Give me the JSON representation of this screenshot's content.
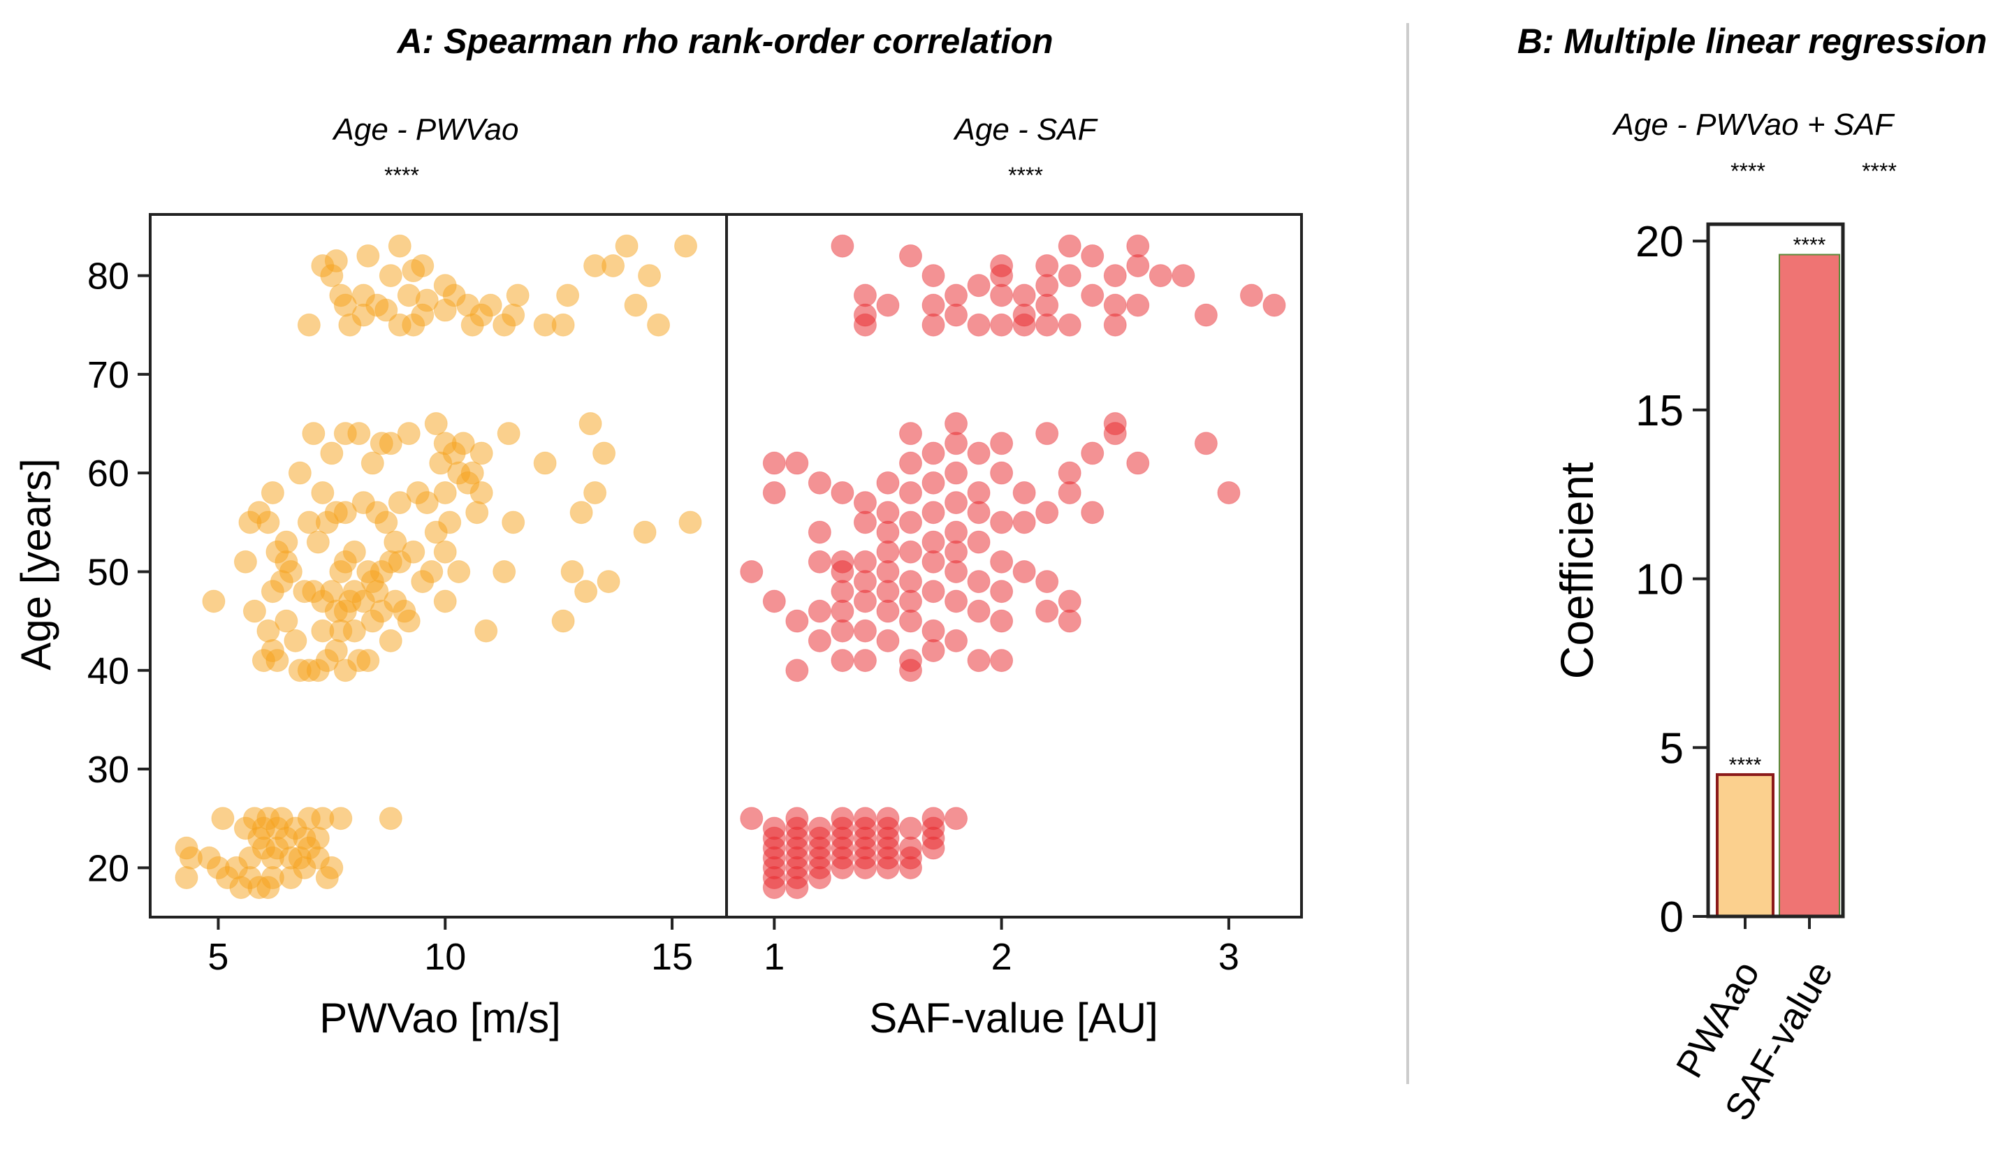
{
  "chart_data": [
    {
      "type": "scatter",
      "panel_title": "A: Spearman rho rank-order correlation",
      "title": "Age - PWVao",
      "significance": "****",
      "xlabel": "PWVao [m/s]",
      "ylabel": "Age [years]",
      "xlim": [
        3.5,
        16.2
      ],
      "ylim": [
        15,
        86.2
      ],
      "xticks": [
        5,
        10,
        15
      ],
      "yticks": [
        20,
        30,
        40,
        50,
        60,
        70,
        80
      ],
      "color": "#f5a21b",
      "points": [
        [
          7.3,
          81
        ],
        [
          7.5,
          80
        ],
        [
          7.6,
          81.5
        ],
        [
          8.3,
          82
        ],
        [
          9,
          83
        ],
        [
          9.5,
          81
        ],
        [
          8.8,
          80
        ],
        [
          9.3,
          80.5
        ],
        [
          7.7,
          78
        ],
        [
          8.2,
          78
        ],
        [
          8.5,
          77
        ],
        [
          9.2,
          78
        ],
        [
          9.5,
          76
        ],
        [
          10,
          79
        ],
        [
          10.2,
          78
        ],
        [
          10.5,
          77
        ],
        [
          10,
          76.5
        ],
        [
          11,
          77
        ],
        [
          11.5,
          76
        ],
        [
          11.6,
          78
        ],
        [
          12.7,
          78
        ],
        [
          13.3,
          81
        ],
        [
          13.7,
          81
        ],
        [
          14,
          83
        ],
        [
          15.3,
          83
        ],
        [
          14.5,
          80
        ],
        [
          14.2,
          77
        ],
        [
          14.7,
          75
        ],
        [
          7,
          75
        ],
        [
          7.9,
          75
        ],
        [
          8.2,
          76
        ],
        [
          9,
          75
        ],
        [
          9.3,
          75
        ],
        [
          10.6,
          75
        ],
        [
          11.3,
          75
        ],
        [
          12.2,
          75
        ],
        [
          12.6,
          75
        ],
        [
          8.7,
          76.5
        ],
        [
          10.8,
          76
        ],
        [
          7.8,
          77
        ],
        [
          9.6,
          77.5
        ],
        [
          4.9,
          47
        ],
        [
          5.6,
          51
        ],
        [
          5.7,
          55
        ],
        [
          5.9,
          56
        ],
        [
          6.1,
          55
        ],
        [
          6.2,
          58
        ],
        [
          6.3,
          52
        ],
        [
          6.5,
          51
        ],
        [
          6.6,
          50
        ],
        [
          6.2,
          48
        ],
        [
          6.4,
          49
        ],
        [
          5.8,
          46
        ],
        [
          6.1,
          44
        ],
        [
          6.2,
          42
        ],
        [
          6.5,
          45
        ],
        [
          6.7,
          43
        ],
        [
          6.0,
          41
        ],
        [
          6.3,
          41
        ],
        [
          6.8,
          40
        ],
        [
          7.0,
          40
        ],
        [
          7.2,
          40
        ],
        [
          7.4,
          41
        ],
        [
          7.6,
          42
        ],
        [
          7.8,
          40
        ],
        [
          8.1,
          41
        ],
        [
          8.3,
          41
        ],
        [
          7.3,
          44
        ],
        [
          7.7,
          44
        ],
        [
          8.0,
          44
        ],
        [
          8.4,
          45
        ],
        [
          8.8,
          43
        ],
        [
          9.1,
          46
        ],
        [
          6.9,
          48
        ],
        [
          7.1,
          48
        ],
        [
          7.3,
          47
        ],
        [
          7.5,
          48
        ],
        [
          7.6,
          46
        ],
        [
          7.8,
          46
        ],
        [
          7.9,
          47
        ],
        [
          8.0,
          48
        ],
        [
          8.2,
          47
        ],
        [
          8.4,
          49
        ],
        [
          7.7,
          50
        ],
        [
          7.8,
          51
        ],
        [
          8.0,
          52
        ],
        [
          8.3,
          50
        ],
        [
          8.6,
          50
        ],
        [
          8.8,
          51
        ],
        [
          9.0,
          51
        ],
        [
          9.3,
          52
        ],
        [
          8.9,
          53
        ],
        [
          7.4,
          55
        ],
        [
          7.6,
          56
        ],
        [
          7.8,
          56
        ],
        [
          8.2,
          57
        ],
        [
          8.5,
          56
        ],
        [
          8.7,
          55
        ],
        [
          9.0,
          57
        ],
        [
          9.4,
          58
        ],
        [
          9.6,
          57
        ],
        [
          9.8,
          54
        ],
        [
          10.1,
          55
        ],
        [
          10.3,
          60
        ],
        [
          10.5,
          59
        ],
        [
          10.0,
          58
        ],
        [
          9.9,
          61
        ],
        [
          10.2,
          62
        ],
        [
          10.6,
          60
        ],
        [
          10.8,
          58
        ],
        [
          10.0,
          63
        ],
        [
          10.4,
          63
        ],
        [
          9.2,
          64
        ],
        [
          9.8,
          65
        ],
        [
          7.8,
          64
        ],
        [
          8.1,
          64
        ],
        [
          8.6,
          63
        ],
        [
          8.8,
          63
        ],
        [
          7.1,
          64
        ],
        [
          7.5,
          62
        ],
        [
          8.4,
          61
        ],
        [
          6.8,
          60
        ],
        [
          7.3,
          58
        ],
        [
          7.0,
          55
        ],
        [
          6.5,
          53
        ],
        [
          7.2,
          53
        ],
        [
          9.7,
          50
        ],
        [
          10.3,
          50
        ],
        [
          10.7,
          56
        ],
        [
          10.8,
          62
        ],
        [
          11.4,
          64
        ],
        [
          12.2,
          61
        ],
        [
          13.2,
          65
        ],
        [
          13.5,
          62
        ],
        [
          13.0,
          56
        ],
        [
          13.3,
          58
        ],
        [
          12.8,
          50
        ],
        [
          13.1,
          48
        ],
        [
          13.6,
          49
        ],
        [
          12.6,
          45
        ],
        [
          14.4,
          54
        ],
        [
          15.4,
          55
        ],
        [
          11.3,
          50
        ],
        [
          11.5,
          55
        ],
        [
          10.9,
          44
        ],
        [
          10.0,
          47
        ],
        [
          10.0,
          52
        ],
        [
          9.5,
          49
        ],
        [
          8.6,
          46
        ],
        [
          8.5,
          48
        ],
        [
          8.9,
          47
        ],
        [
          9.2,
          45
        ],
        [
          4.3,
          22
        ],
        [
          4.4,
          21
        ],
        [
          4.3,
          19
        ],
        [
          4.8,
          21
        ],
        [
          5.0,
          20
        ],
        [
          5.2,
          19
        ],
        [
          5.5,
          18
        ],
        [
          5.1,
          25
        ],
        [
          5.6,
          24
        ],
        [
          5.8,
          25
        ],
        [
          5.9,
          23
        ],
        [
          6.0,
          22
        ],
        [
          6.2,
          21
        ],
        [
          6.3,
          22
        ],
        [
          6.5,
          23
        ],
        [
          6.1,
          25
        ],
        [
          6.4,
          25
        ],
        [
          6.7,
          24
        ],
        [
          6.9,
          23
        ],
        [
          7.2,
          23
        ],
        [
          7.0,
          22
        ],
        [
          7.3,
          25
        ],
        [
          7.7,
          25
        ],
        [
          6.2,
          19
        ],
        [
          6.6,
          19
        ],
        [
          5.9,
          18
        ],
        [
          6.1,
          18
        ],
        [
          7.4,
          19
        ],
        [
          7.5,
          20
        ],
        [
          6.9,
          20
        ],
        [
          5.4,
          20
        ],
        [
          5.7,
          21
        ],
        [
          6.8,
          21
        ],
        [
          7.0,
          25
        ],
        [
          6.0,
          24
        ],
        [
          8.8,
          25
        ],
        [
          7.2,
          21
        ],
        [
          5.7,
          19
        ],
        [
          6.6,
          21
        ],
        [
          6.3,
          24
        ]
      ]
    },
    {
      "type": "scatter",
      "title": "Age - SAF",
      "significance": "****",
      "xlabel": "SAF-value [AU]",
      "ylabel": "Age [years]",
      "xlim": [
        0.79,
        3.32
      ],
      "ylim": [
        15,
        86.2
      ],
      "xticks": [
        1,
        2,
        3
      ],
      "color": "#e8262a",
      "points": [
        [
          1.3,
          83
        ],
        [
          1.4,
          78
        ],
        [
          1.4,
          76
        ],
        [
          1.4,
          75
        ],
        [
          1.5,
          77
        ],
        [
          1.7,
          77
        ],
        [
          1.7,
          75
        ],
        [
          1.8,
          78
        ],
        [
          1.8,
          76
        ],
        [
          1.6,
          82
        ],
        [
          1.7,
          80
        ],
        [
          1.9,
          75
        ],
        [
          1.9,
          79
        ],
        [
          2.0,
          80
        ],
        [
          2.0,
          81
        ],
        [
          2.0,
          78
        ],
        [
          2.0,
          75
        ],
        [
          2.1,
          78
        ],
        [
          2.1,
          76
        ],
        [
          2.1,
          75
        ],
        [
          2.2,
          77
        ],
        [
          2.2,
          75
        ],
        [
          2.2,
          79
        ],
        [
          2.2,
          81
        ],
        [
          2.3,
          83
        ],
        [
          2.3,
          80
        ],
        [
          2.3,
          75
        ],
        [
          2.4,
          78
        ],
        [
          2.5,
          77
        ],
        [
          2.5,
          75
        ],
        [
          2.5,
          80
        ],
        [
          2.6,
          83
        ],
        [
          2.6,
          77
        ],
        [
          2.6,
          81
        ],
        [
          2.7,
          80
        ],
        [
          2.8,
          80
        ],
        [
          2.9,
          76
        ],
        [
          3.1,
          78
        ],
        [
          3.2,
          77
        ],
        [
          2.4,
          82
        ],
        [
          0.9,
          50
        ],
        [
          1.0,
          61
        ],
        [
          1.1,
          61
        ],
        [
          1.0,
          47
        ],
        [
          1.1,
          40
        ],
        [
          1.2,
          59
        ],
        [
          1.2,
          54
        ],
        [
          1.2,
          51
        ],
        [
          1.2,
          46
        ],
        [
          1.2,
          43
        ],
        [
          1.3,
          58
        ],
        [
          1.3,
          51
        ],
        [
          1.3,
          50
        ],
        [
          1.3,
          48
        ],
        [
          1.3,
          46
        ],
        [
          1.3,
          44
        ],
        [
          1.3,
          41
        ],
        [
          1.4,
          57
        ],
        [
          1.4,
          55
        ],
        [
          1.4,
          51
        ],
        [
          1.4,
          49
        ],
        [
          1.4,
          47
        ],
        [
          1.4,
          44
        ],
        [
          1.4,
          41
        ],
        [
          1.5,
          59
        ],
        [
          1.5,
          56
        ],
        [
          1.5,
          54
        ],
        [
          1.5,
          52
        ],
        [
          1.5,
          50
        ],
        [
          1.5,
          48
        ],
        [
          1.5,
          46
        ],
        [
          1.5,
          43
        ],
        [
          1.6,
          64
        ],
        [
          1.6,
          61
        ],
        [
          1.6,
          58
        ],
        [
          1.6,
          55
        ],
        [
          1.6,
          52
        ],
        [
          1.6,
          49
        ],
        [
          1.6,
          47
        ],
        [
          1.6,
          45
        ],
        [
          1.6,
          41
        ],
        [
          1.6,
          40
        ],
        [
          1.7,
          62
        ],
        [
          1.7,
          59
        ],
        [
          1.7,
          56
        ],
        [
          1.7,
          53
        ],
        [
          1.7,
          51
        ],
        [
          1.7,
          48
        ],
        [
          1.7,
          44
        ],
        [
          1.7,
          42
        ],
        [
          1.8,
          65
        ],
        [
          1.8,
          63
        ],
        [
          1.8,
          60
        ],
        [
          1.8,
          57
        ],
        [
          1.8,
          54
        ],
        [
          1.8,
          52
        ],
        [
          1.8,
          50
        ],
        [
          1.8,
          47
        ],
        [
          1.8,
          43
        ],
        [
          1.9,
          62
        ],
        [
          1.9,
          58
        ],
        [
          1.9,
          56
        ],
        [
          1.9,
          53
        ],
        [
          1.9,
          49
        ],
        [
          1.9,
          46
        ],
        [
          1.9,
          41
        ],
        [
          2.0,
          63
        ],
        [
          2.0,
          60
        ],
        [
          2.0,
          55
        ],
        [
          2.0,
          51
        ],
        [
          2.0,
          48
        ],
        [
          2.0,
          45
        ],
        [
          2.0,
          41
        ],
        [
          2.1,
          58
        ],
        [
          2.1,
          55
        ],
        [
          2.1,
          50
        ],
        [
          2.2,
          64
        ],
        [
          2.2,
          56
        ],
        [
          2.2,
          49
        ],
        [
          2.2,
          46
        ],
        [
          2.3,
          60
        ],
        [
          2.3,
          58
        ],
        [
          2.4,
          56
        ],
        [
          2.4,
          62
        ],
        [
          2.5,
          65
        ],
        [
          2.5,
          64
        ],
        [
          2.6,
          61
        ],
        [
          2.3,
          47
        ],
        [
          2.3,
          45
        ],
        [
          2.9,
          63
        ],
        [
          3.0,
          58
        ],
        [
          1.1,
          45
        ],
        [
          1.0,
          58
        ],
        [
          0.9,
          25
        ],
        [
          1.0,
          24
        ],
        [
          1.0,
          23
        ],
        [
          1.0,
          22
        ],
        [
          1.0,
          21
        ],
        [
          1.0,
          20
        ],
        [
          1.0,
          19
        ],
        [
          1.0,
          18
        ],
        [
          1.1,
          25
        ],
        [
          1.1,
          24
        ],
        [
          1.1,
          23
        ],
        [
          1.1,
          22
        ],
        [
          1.1,
          21
        ],
        [
          1.1,
          20
        ],
        [
          1.1,
          19
        ],
        [
          1.1,
          18
        ],
        [
          1.2,
          24
        ],
        [
          1.2,
          23
        ],
        [
          1.2,
          22
        ],
        [
          1.2,
          21
        ],
        [
          1.2,
          20
        ],
        [
          1.2,
          19
        ],
        [
          1.3,
          25
        ],
        [
          1.3,
          24
        ],
        [
          1.3,
          23
        ],
        [
          1.3,
          22
        ],
        [
          1.3,
          21
        ],
        [
          1.3,
          20
        ],
        [
          1.4,
          25
        ],
        [
          1.4,
          24
        ],
        [
          1.4,
          23
        ],
        [
          1.4,
          22
        ],
        [
          1.4,
          21
        ],
        [
          1.4,
          20
        ],
        [
          1.5,
          25
        ],
        [
          1.5,
          24
        ],
        [
          1.5,
          23
        ],
        [
          1.5,
          22
        ],
        [
          1.5,
          21
        ],
        [
          1.5,
          20
        ],
        [
          1.6,
          24
        ],
        [
          1.6,
          22
        ],
        [
          1.6,
          21
        ],
        [
          1.6,
          20
        ],
        [
          1.7,
          25
        ],
        [
          1.7,
          24
        ],
        [
          1.7,
          23
        ],
        [
          1.7,
          22
        ],
        [
          1.8,
          25
        ]
      ]
    },
    {
      "type": "bar",
      "panel_title": "B: Multiple linear regression",
      "title": "Age - PWVao + SAF",
      "header_significance": [
        "****",
        "****"
      ],
      "categories": [
        "PWAao",
        "SAF-value"
      ],
      "values": [
        4.2,
        19.6
      ],
      "bar_labels": [
        "****",
        "****"
      ],
      "colors": [
        "#fbd08e",
        "#ef7473"
      ],
      "edge_colors": [
        "#8b1a1a",
        "#5a8a3a"
      ],
      "ylabel": "Coefficient",
      "ylim": [
        0,
        20.5
      ],
      "yticks": [
        0,
        5,
        10,
        15,
        20
      ]
    }
  ]
}
